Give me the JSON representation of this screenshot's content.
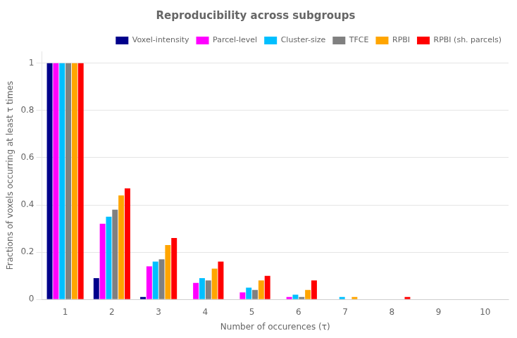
{
  "chart_data": {
    "type": "bar",
    "title": "Reproducibility across subgroups",
    "xlabel": "Number of occurences (τ)",
    "ylabel": "Fractions of voxels occurring at least τ times",
    "categories": [
      "1",
      "2",
      "3",
      "4",
      "5",
      "6",
      "7",
      "8",
      "9",
      "10"
    ],
    "series": [
      {
        "name": "Voxel-intensity",
        "color": "#00008B",
        "values": [
          1.0,
          0.09,
          0.01,
          0.0,
          0.0,
          0.0,
          0.0,
          0.0,
          0.0,
          0.0
        ]
      },
      {
        "name": "Parcel-level",
        "color": "#FF00FF",
        "values": [
          1.0,
          0.32,
          0.14,
          0.07,
          0.03,
          0.01,
          0.0,
          0.0,
          0.0,
          0.0
        ]
      },
      {
        "name": "Cluster-size",
        "color": "#00BFFF",
        "values": [
          1.0,
          0.35,
          0.16,
          0.09,
          0.05,
          0.02,
          0.01,
          0.0,
          0.0,
          0.0
        ]
      },
      {
        "name": "TFCE",
        "color": "#808080",
        "values": [
          1.0,
          0.38,
          0.17,
          0.08,
          0.04,
          0.01,
          0.0,
          0.0,
          0.0,
          0.0
        ]
      },
      {
        "name": "RPBI",
        "color": "#FFA500",
        "values": [
          1.0,
          0.44,
          0.23,
          0.13,
          0.08,
          0.04,
          0.01,
          0.0,
          0.0,
          0.0
        ]
      },
      {
        "name": "RPBI (sh. parcels)",
        "color": "#FF0000",
        "values": [
          1.0,
          0.47,
          0.26,
          0.16,
          0.1,
          0.08,
          0.0,
          0.01,
          0.0,
          0.0
        ]
      }
    ],
    "ylim": [
      0.0,
      1.05
    ],
    "yticks": [
      0,
      0.2,
      0.4,
      0.6,
      0.8,
      1
    ],
    "grid": true,
    "legend": "upper right"
  }
}
